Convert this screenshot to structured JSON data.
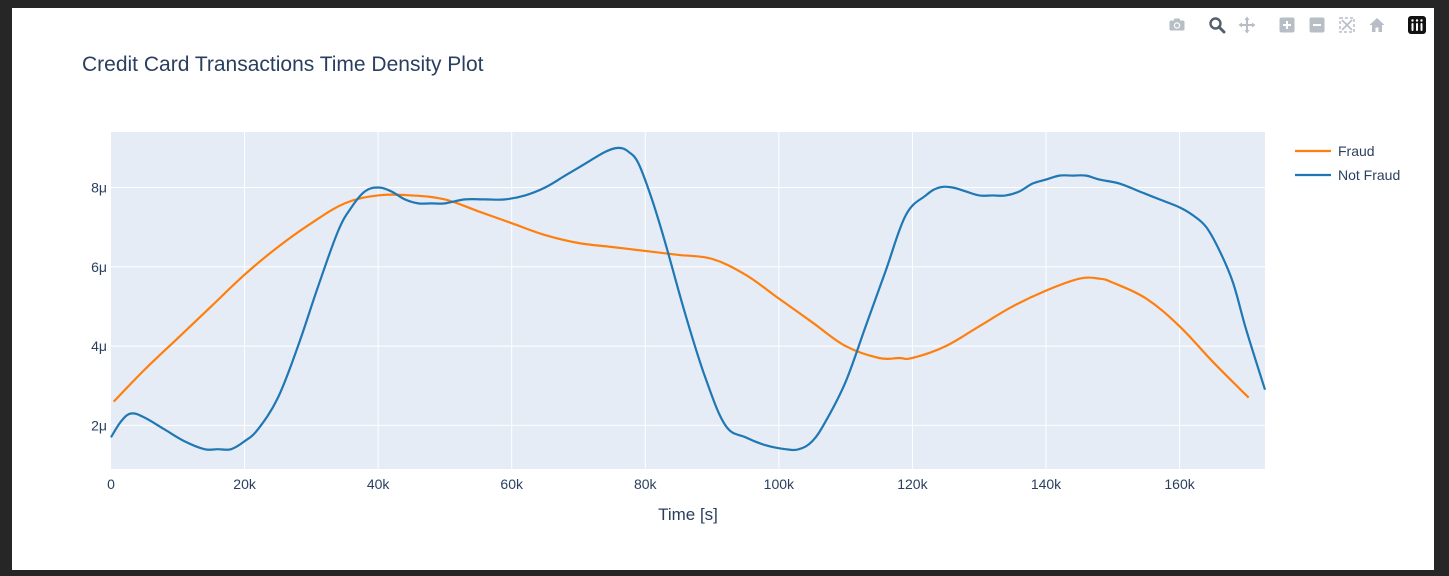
{
  "modebar": {
    "icons": [
      "camera-icon",
      "zoom-icon",
      "pan-icon",
      "zoom-in-icon",
      "zoom-out-icon",
      "autoscale-icon",
      "reset-axes-icon",
      "plotly-logo-icon"
    ]
  },
  "colors": {
    "plot_bg": "#e5ecf6",
    "grid": "#ffffff",
    "fraud": "#ff7f0e",
    "not_fraud": "#1f77b4"
  },
  "chart_data": {
    "type": "line",
    "title": "Credit Card Transactions Time Density Plot",
    "xlabel": "Time [s]",
    "ylabel": "",
    "xlim": [
      0,
      172792
    ],
    "ylim": [
      9e-07,
      9.4e-06
    ],
    "x_ticks": [
      0,
      20000,
      40000,
      60000,
      80000,
      100000,
      120000,
      140000,
      160000
    ],
    "x_tick_labels": [
      "0",
      "20k",
      "40k",
      "60k",
      "80k",
      "100k",
      "120k",
      "140k",
      "160k"
    ],
    "y_ticks": [
      2e-06,
      4e-06,
      6e-06,
      8e-06
    ],
    "y_tick_labels": [
      "2μ",
      "4μ",
      "6μ",
      "8μ"
    ],
    "grid": true,
    "legend_position": "top-right",
    "series": [
      {
        "name": "Fraud",
        "color": "#ff7f0e",
        "x": [
          406,
          5000,
          10000,
          15000,
          20000,
          25000,
          30000,
          35000,
          40000,
          45000,
          50000,
          55000,
          60000,
          65000,
          70000,
          75000,
          80000,
          85000,
          90000,
          95000,
          100000,
          105000,
          110000,
          115000,
          118000,
          120000,
          125000,
          130000,
          135000,
          140000,
          145000,
          148000,
          150000,
          155000,
          160000,
          165000,
          170348
        ],
        "y": [
          2.6e-06,
          3.4e-06,
          4.2e-06,
          5e-06,
          5.8e-06,
          6.5e-06,
          7.1e-06,
          7.6e-06,
          7.8e-06,
          7.8e-06,
          7.7e-06,
          7.4e-06,
          7.1e-06,
          6.8e-06,
          6.6e-06,
          6.5e-06,
          6.4e-06,
          6.3e-06,
          6.2e-06,
          5.8e-06,
          5.2e-06,
          4.6e-06,
          4e-06,
          3.7e-06,
          3.7e-06,
          3.7e-06,
          4e-06,
          4.5e-06,
          5e-06,
          5.4e-06,
          5.7e-06,
          5.7e-06,
          5.6e-06,
          5.2e-06,
          4.5e-06,
          3.6e-06,
          2.7e-06
        ]
      },
      {
        "name": "Not Fraud",
        "color": "#1f77b4",
        "x": [
          0,
          1500,
          3000,
          5000,
          8000,
          11000,
          14000,
          16000,
          18000,
          20000,
          22000,
          25000,
          28000,
          31000,
          34000,
          36000,
          38000,
          40000,
          42000,
          44000,
          46000,
          48000,
          50000,
          53000,
          56000,
          59000,
          62000,
          65000,
          68000,
          71000,
          74000,
          76000,
          77500,
          79000,
          81000,
          83000,
          86000,
          89000,
          92000,
          95000,
          98000,
          101000,
          103000,
          105000,
          107000,
          110000,
          113000,
          116000,
          119000,
          122000,
          124000,
          126000,
          128000,
          130000,
          132000,
          134000,
          136000,
          138000,
          140000,
          142000,
          144000,
          146000,
          148000,
          151000,
          154000,
          157000,
          160000,
          162000,
          164000,
          166000,
          168000,
          170000,
          172792
        ],
        "y": [
          1.7e-06,
          2.1e-06,
          2.3e-06,
          2.2e-06,
          1.9e-06,
          1.6e-06,
          1.4e-06,
          1.4e-06,
          1.4e-06,
          1.6e-06,
          1.9e-06,
          2.7e-06,
          4e-06,
          5.5e-06,
          6.9e-06,
          7.5e-06,
          7.9e-06,
          8e-06,
          7.9e-06,
          7.7e-06,
          7.6e-06,
          7.6e-06,
          7.6e-06,
          7.7e-06,
          7.7e-06,
          7.7e-06,
          7.8e-06,
          8e-06,
          8.3e-06,
          8.6e-06,
          8.9e-06,
          9e-06,
          8.9e-06,
          8.6e-06,
          7.7e-06,
          6.6e-06,
          4.8e-06,
          3.2e-06,
          2e-06,
          1.7e-06,
          1.5e-06,
          1.4e-06,
          1.4e-06,
          1.6e-06,
          2.1e-06,
          3.1e-06,
          4.5e-06,
          5.9e-06,
          7.3e-06,
          7.8e-06,
          8e-06,
          8e-06,
          7.9e-06,
          7.8e-06,
          7.8e-06,
          7.8e-06,
          7.9e-06,
          8.1e-06,
          8.2e-06,
          8.3e-06,
          8.3e-06,
          8.3e-06,
          8.2e-06,
          8.1e-06,
          7.9e-06,
          7.7e-06,
          7.5e-06,
          7.3e-06,
          7e-06,
          6.4e-06,
          5.6e-06,
          4.4e-06,
          2.9e-06
        ]
      }
    ]
  }
}
